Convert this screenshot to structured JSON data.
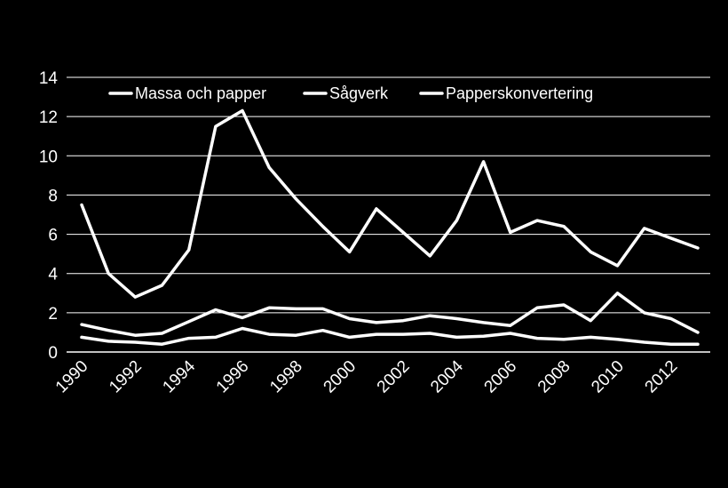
{
  "chart_data": {
    "type": "line",
    "title": "",
    "xlabel": "",
    "ylabel": "",
    "ylim": [
      0,
      14
    ],
    "xlim": [
      1990,
      2013
    ],
    "y_ticks": [
      "0",
      "2",
      "4",
      "6",
      "8",
      "10",
      "12",
      "14"
    ],
    "x_ticks": [
      "1990",
      "1992",
      "1994",
      "1996",
      "1998",
      "2000",
      "2002",
      "2004",
      "2006",
      "2008",
      "2010",
      "2012"
    ],
    "grid": true,
    "legend_position": "top",
    "x": [
      1990,
      1991,
      1992,
      1993,
      1994,
      1995,
      1996,
      1997,
      1998,
      1999,
      2000,
      2001,
      2002,
      2003,
      2004,
      2005,
      2006,
      2007,
      2008,
      2009,
      2010,
      2011,
      2012,
      2013
    ],
    "series": [
      {
        "name": "Massa och papper",
        "color": "#ffffff",
        "values": [
          7.5,
          4.0,
          2.8,
          3.4,
          5.2,
          11.5,
          12.3,
          9.4,
          7.8,
          6.4,
          5.1,
          7.3,
          6.1,
          4.9,
          6.7,
          9.7,
          6.1,
          6.7,
          6.4,
          5.1,
          4.4,
          6.3,
          5.8,
          5.3
        ]
      },
      {
        "name": "Sågverk",
        "color": "#ffffff",
        "values": [
          1.4,
          1.1,
          0.85,
          0.95,
          1.55,
          2.15,
          1.75,
          2.25,
          2.2,
          2.2,
          1.7,
          1.5,
          1.6,
          1.85,
          1.7,
          1.5,
          1.35,
          2.25,
          2.4,
          1.6,
          3.0,
          2.0,
          1.7,
          1.0
        ]
      },
      {
        "name": "Papperskonvertering",
        "color": "#ffffff",
        "values": [
          0.75,
          0.55,
          0.5,
          0.4,
          0.7,
          0.75,
          1.2,
          0.9,
          0.85,
          1.1,
          0.75,
          0.9,
          0.9,
          0.95,
          0.75,
          0.8,
          0.95,
          0.7,
          0.65,
          0.75,
          0.65,
          0.5,
          0.4,
          0.4
        ]
      }
    ]
  }
}
